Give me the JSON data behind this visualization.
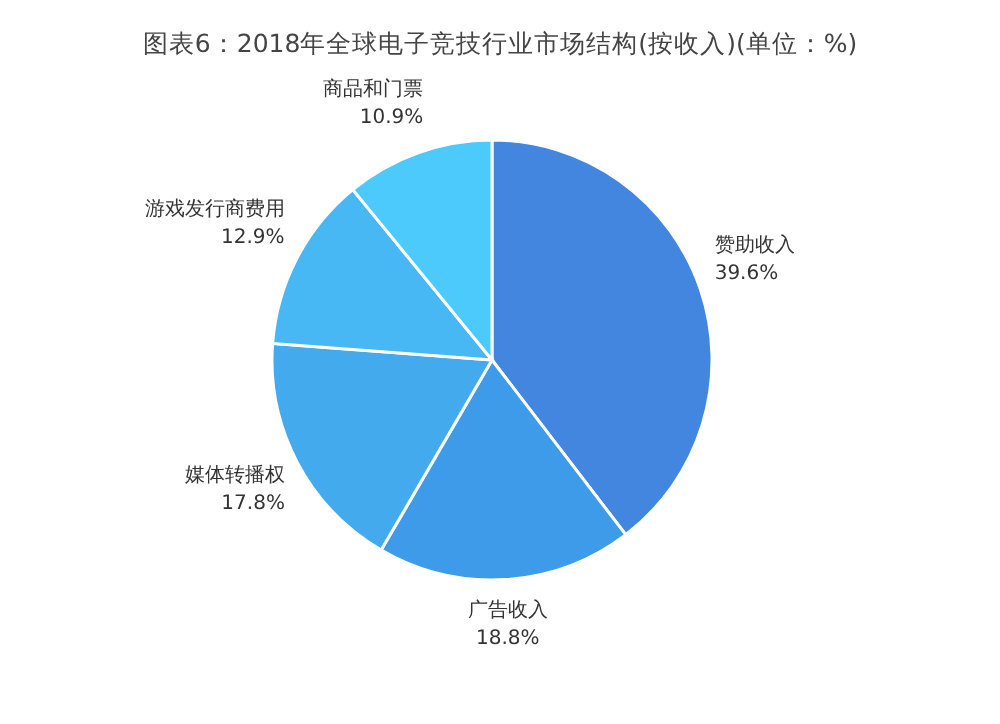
{
  "chart_data": {
    "type": "pie",
    "title": "图表6：2018年全球电子竞技行业市场结构(按收入)(单位：%)",
    "categories": [
      "赞助收入",
      "广告收入",
      "媒体转播权",
      "游戏发行商费用",
      "商品和门票"
    ],
    "values": [
      39.6,
      18.8,
      17.8,
      12.9,
      10.9
    ],
    "colors": [
      "#4286e0",
      "#3d9be9",
      "#44aaee",
      "#48b8f5",
      "#4ccafc"
    ],
    "value_labels": [
      "39.6%",
      "18.8%",
      "17.8%",
      "12.9%",
      "10.9%"
    ]
  }
}
